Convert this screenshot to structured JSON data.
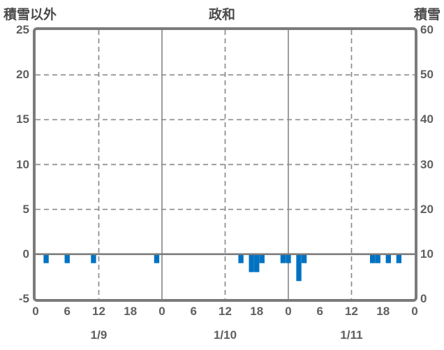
{
  "header": {
    "left_label": "積雪以外",
    "title": "政和",
    "right_label": "積雪"
  },
  "colors": {
    "bar": "#0072C2",
    "grid": "#8c8c8c",
    "zero_line": "#7b7b7b",
    "frame": "#7b7b7b",
    "text": "#5f5f5f"
  },
  "chart_data": {
    "type": "bar",
    "title": "政和",
    "station": "政和",
    "y_left_axis": {
      "label": "積雪以外",
      "min": -5,
      "max": 25,
      "ticks": [
        25,
        20,
        15,
        10,
        5,
        0,
        -5
      ]
    },
    "y_right_axis": {
      "label": "積雪",
      "min": 0,
      "max": 60,
      "ticks": [
        60,
        50,
        40,
        30,
        20,
        10,
        0
      ]
    },
    "x_axis": {
      "total_hours": 72,
      "ticks": [
        {
          "hour": 0,
          "label": "0"
        },
        {
          "hour": 6,
          "label": "6"
        },
        {
          "hour": 12,
          "label": "12"
        },
        {
          "hour": 18,
          "label": "18"
        },
        {
          "hour": 24,
          "label": "0"
        },
        {
          "hour": 30,
          "label": "6"
        },
        {
          "hour": 36,
          "label": "12"
        },
        {
          "hour": 42,
          "label": "18"
        },
        {
          "hour": 48,
          "label": "0"
        },
        {
          "hour": 54,
          "label": "6"
        },
        {
          "hour": 60,
          "label": "12"
        },
        {
          "hour": 66,
          "label": "18"
        },
        {
          "hour": 72,
          "label": "0"
        }
      ],
      "day_labels": [
        {
          "label": "1/9",
          "center_hour": 12
        },
        {
          "label": "1/10",
          "center_hour": 36
        },
        {
          "label": "1/11",
          "center_hour": 60
        }
      ]
    },
    "grid": {
      "h_dashed_values": [
        20,
        15,
        10,
        5
      ],
      "v_solid_hours": [
        24,
        48
      ],
      "v_dashed_hours": [
        12,
        36,
        60
      ],
      "zero_line_value": 0
    },
    "series": [
      {
        "name": "積雪以外",
        "axis": "left",
        "points": [
          {
            "day": "1/9",
            "hour": 2,
            "t": 2,
            "value": -1
          },
          {
            "day": "1/9",
            "hour": 6,
            "t": 6,
            "value": -1
          },
          {
            "day": "1/9",
            "hour": 11,
            "t": 11,
            "value": -1
          },
          {
            "day": "1/9",
            "hour": 23,
            "t": 23,
            "value": -1
          },
          {
            "day": "1/10",
            "hour": 15,
            "t": 39,
            "value": -1
          },
          {
            "day": "1/10",
            "hour": 17,
            "t": 41,
            "value": -2
          },
          {
            "day": "1/10",
            "hour": 18,
            "t": 42,
            "value": -2
          },
          {
            "day": "1/10",
            "hour": 19,
            "t": 43,
            "value": -1
          },
          {
            "day": "1/10",
            "hour": 23,
            "t": 47,
            "value": -1
          },
          {
            "day": "1/11",
            "hour": 0,
            "t": 48,
            "value": -1
          },
          {
            "day": "1/11",
            "hour": 2,
            "t": 50,
            "value": -3
          },
          {
            "day": "1/11",
            "hour": 3,
            "t": 51,
            "value": -1
          },
          {
            "day": "1/11",
            "hour": 16,
            "t": 64,
            "value": -1
          },
          {
            "day": "1/11",
            "hour": 17,
            "t": 65,
            "value": -1
          },
          {
            "day": "1/11",
            "hour": 19,
            "t": 67,
            "value": -1
          },
          {
            "day": "1/11",
            "hour": 21,
            "t": 69,
            "value": -1
          }
        ]
      },
      {
        "name": "積雪",
        "axis": "right",
        "points": []
      }
    ]
  }
}
